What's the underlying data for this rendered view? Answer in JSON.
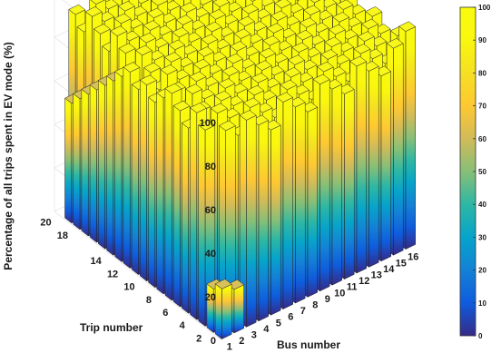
{
  "chart_data": {
    "type": "bar3",
    "title": "",
    "xlabel": "Bus number",
    "ylabel": "Trip number",
    "zlabel": "Percentage of all trips spent in EV mode (%)",
    "zlim": [
      0,
      100
    ],
    "x_ticks": [
      "1",
      "2",
      "3",
      "4",
      "5",
      "6",
      "7",
      "8",
      "9",
      "10",
      "11",
      "12",
      "13",
      "14",
      "15",
      "16"
    ],
    "y_ticks": [
      "2",
      "4",
      "6",
      "8",
      "10",
      "12",
      "14",
      "18",
      "20"
    ],
    "z_ticks": [
      "0",
      "20",
      "40",
      "60",
      "80",
      "100"
    ],
    "colorbar": {
      "ticks": [
        "0",
        "10",
        "20",
        "30",
        "40",
        "50",
        "60",
        "70",
        "80",
        "90",
        "100"
      ],
      "range": [
        0,
        100
      ],
      "colormap": "parula"
    },
    "grid": true,
    "buses": [
      1,
      2,
      3,
      4,
      5,
      6,
      7,
      8,
      9,
      10,
      11,
      12,
      13,
      14,
      15,
      16
    ],
    "trips": [
      1,
      2,
      3,
      4,
      5,
      6,
      7,
      8,
      9,
      10,
      11,
      12,
      13,
      14,
      15,
      16,
      17,
      18,
      19,
      20
    ],
    "values": [
      [
        23,
        20,
        95,
        90,
        85,
        95,
        90,
        85,
        95,
        90,
        85,
        95,
        90,
        85,
        95,
        100
      ],
      [
        20,
        90,
        85,
        95,
        90,
        85,
        95,
        90,
        85,
        95,
        90,
        85,
        95,
        90,
        85,
        95
      ],
      [
        90,
        95,
        90,
        85,
        95,
        90,
        85,
        95,
        90,
        85,
        95,
        90,
        85,
        95,
        90,
        85
      ],
      [
        95,
        85,
        95,
        90,
        85,
        95,
        90,
        85,
        95,
        90,
        85,
        95,
        90,
        85,
        95,
        90
      ],
      [
        85,
        90,
        85,
        95,
        90,
        85,
        95,
        90,
        85,
        95,
        90,
        85,
        95,
        90,
        85,
        95
      ],
      [
        90,
        95,
        90,
        85,
        95,
        90,
        85,
        95,
        90,
        85,
        95,
        90,
        85,
        95,
        90,
        85
      ],
      [
        95,
        85,
        95,
        90,
        85,
        95,
        90,
        85,
        95,
        90,
        85,
        95,
        90,
        85,
        95,
        90
      ],
      [
        90,
        90,
        85,
        95,
        90,
        85,
        95,
        90,
        85,
        95,
        90,
        85,
        95,
        90,
        85,
        95
      ],
      [
        85,
        95,
        90,
        85,
        95,
        90,
        85,
        95,
        90,
        85,
        95,
        90,
        85,
        95,
        90,
        85
      ],
      [
        90,
        85,
        95,
        90,
        85,
        95,
        90,
        85,
        95,
        90,
        85,
        95,
        90,
        85,
        95,
        90
      ],
      [
        85,
        90,
        85,
        95,
        90,
        85,
        95,
        90,
        85,
        95,
        90,
        85,
        95,
        90,
        85,
        95
      ],
      [
        90,
        95,
        90,
        85,
        95,
        90,
        85,
        95,
        90,
        85,
        95,
        90,
        85,
        95,
        90,
        85
      ],
      [
        85,
        85,
        95,
        90,
        85,
        95,
        90,
        85,
        95,
        90,
        85,
        95,
        90,
        85,
        95,
        90
      ],
      [
        80,
        90,
        85,
        95,
        90,
        85,
        95,
        90,
        85,
        95,
        90,
        85,
        95,
        90,
        85,
        95
      ],
      [
        75,
        95,
        90,
        85,
        95,
        90,
        85,
        95,
        90,
        85,
        95,
        90,
        85,
        95,
        90,
        85
      ],
      [
        70,
        85,
        95,
        90,
        85,
        95,
        90,
        85,
        95,
        90,
        85,
        95,
        90,
        85,
        95,
        90
      ],
      [
        65,
        90,
        85,
        95,
        90,
        85,
        95,
        90,
        85,
        95,
        90,
        85,
        95,
        90,
        85,
        95
      ],
      [
        60,
        95,
        90,
        85,
        95,
        90,
        85,
        95,
        90,
        85,
        95,
        90,
        85,
        95,
        90,
        85
      ],
      [
        55,
        85,
        95,
        90,
        85,
        95,
        90,
        85,
        95,
        90,
        85,
        95,
        90,
        85,
        95,
        90
      ],
      [
        0,
        90,
        85,
        95,
        90,
        85,
        95,
        90,
        85,
        95,
        90,
        85,
        95,
        90,
        85,
        95
      ]
    ]
  }
}
